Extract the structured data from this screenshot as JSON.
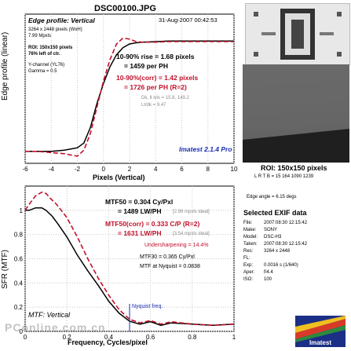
{
  "title": "DSC00100.JPG",
  "edge": {
    "header": "Edge profile: Vertical",
    "date": "31-Aug-2007 00:42:53",
    "ylabel": "Edge profile (linear)",
    "xlabel": "Pixels (Vertical)",
    "info": [
      "3264 x 2448 pixels (WxH)",
      "7.99 Mpxls",
      "ROI: 150x150 pixels",
      "76% left of ctr.",
      "Y-channel (YL76)",
      "Gamma = 0.5"
    ],
    "rise1": "10-90% rise = 1.68 pixels",
    "rise2": "= 1459 per PH",
    "corr1": "10-90%(corr) = 1.42 pixels",
    "corr2": "= 1726 per PH  (R=2)",
    "dk": "Dk, lt lvls = 15.8, 149.2",
    "ltdk": "Lt/dk = 9.47",
    "brand": "Imatest 2.1.4 Pro"
  },
  "mtf": {
    "ylabel": "SFR (MTF)",
    "xlabel": "Frequency, Cycles/pixel",
    "caption": "MTF: Vertical",
    "mtf50a": "MTF50 = 0.304 Cy/Pxl",
    "mtf50b": "= 1489 LW/PH",
    "mtf50b_note": "[2.96 mpxls ideal]",
    "mtf50c": "MTF50(corr) = 0.333 C/P  (R=2)",
    "mtf50d": "= 1631 LW/PH",
    "mtf50d_note": "[3.54 mpxls ideal]",
    "under": "Undersharpening = 14.4%",
    "mtf30": "MTF30 = 0.365 Cy/Pxl",
    "nyq": "MTF at Nyquist = 0.0838",
    "nyq_label": "Nyquist freq."
  },
  "roi": {
    "title": "ROI: 150x150 pixels",
    "coords": "L R T B = 15 164  1090 1239"
  },
  "edge_angle": "Edge angle = 6.15 degs",
  "exif": {
    "title": "Selected EXIF data",
    "rows": [
      [
        "File:",
        "2007:08:30 12:15:42"
      ],
      [
        "Make:",
        "SONY"
      ],
      [
        "Model:",
        "DSC-H3"
      ],
      [
        "Taken:",
        "2007:08:30 12:15:42"
      ],
      [
        "Res:",
        "3264 x 2448"
      ],
      [
        "FL:",
        ""
      ],
      [
        "Exp:",
        "0.0016 s  (1/640)"
      ],
      [
        "Aper:",
        "f/4.4"
      ],
      [
        "ISO:",
        "100"
      ]
    ]
  },
  "logo": "Imatest",
  "watermark": "PConline.com.cn",
  "chart_data": [
    {
      "type": "line",
      "title": "Edge profile: Vertical",
      "xlabel": "Pixels (Vertical)",
      "ylabel": "Edge profile (linear)",
      "xlim": [
        -6,
        10
      ],
      "xticks": [
        -6,
        -4,
        -2,
        0,
        2,
        4,
        6,
        8,
        10
      ],
      "series": [
        {
          "style": "solid-black",
          "x": [
            -6,
            -5,
            -4,
            -3,
            -2.5,
            -2,
            -1.5,
            -1,
            -0.5,
            0,
            0.5,
            1,
            1.5,
            2,
            2.5,
            3,
            4,
            5,
            6,
            7,
            8,
            9,
            10
          ],
          "y": [
            0.05,
            0.05,
            0.05,
            0.06,
            0.07,
            0.08,
            0.12,
            0.25,
            0.45,
            0.62,
            0.76,
            0.86,
            0.92,
            0.95,
            0.96,
            0.965,
            0.97,
            0.975,
            0.975,
            0.975,
            0.975,
            0.975,
            0.975
          ]
        },
        {
          "style": "dashed-red",
          "x": [
            -6,
            -5,
            -4,
            -3,
            -2.5,
            -2,
            -1.5,
            -1,
            -0.5,
            0,
            0.5,
            1,
            1.5,
            2,
            2.5,
            3,
            4,
            5,
            6,
            7,
            8,
            9,
            10
          ],
          "y": [
            0.05,
            0.05,
            0.04,
            0.03,
            0.02,
            0.01,
            0.06,
            0.2,
            0.42,
            0.64,
            0.82,
            0.95,
            1.0,
            0.99,
            0.97,
            0.965,
            0.965,
            0.97,
            0.97,
            0.97,
            0.97,
            0.97,
            0.97
          ]
        }
      ]
    },
    {
      "type": "line",
      "title": "MTF: Vertical",
      "xlabel": "Frequency, Cycles/pixel",
      "ylabel": "SFR (MTF)",
      "xlim": [
        0,
        1
      ],
      "ylim": [
        0,
        1.2
      ],
      "xticks": [
        0,
        0.2,
        0.4,
        0.6,
        0.8,
        1
      ],
      "yticks": [
        0,
        0.2,
        0.4,
        0.6,
        0.8,
        1
      ],
      "series": [
        {
          "style": "solid-black",
          "x": [
            0,
            0.02,
            0.05,
            0.08,
            0.1,
            0.13,
            0.16,
            0.2,
            0.25,
            0.3,
            0.35,
            0.4,
            0.45,
            0.5,
            0.55,
            0.6,
            0.65,
            0.7,
            0.8,
            0.9,
            1.0
          ],
          "y": [
            1.0,
            1.0,
            1.02,
            1.02,
            1.0,
            0.95,
            0.88,
            0.78,
            0.63,
            0.5,
            0.38,
            0.25,
            0.15,
            0.084,
            0.06,
            0.08,
            0.05,
            0.07,
            0.06,
            0.05,
            0.06
          ]
        },
        {
          "style": "dashed-red",
          "x": [
            0,
            0.02,
            0.05,
            0.08,
            0.1,
            0.12,
            0.15,
            0.2,
            0.25,
            0.3,
            0.35,
            0.4,
            0.45,
            0.5,
            0.55,
            0.6,
            0.65,
            0.7,
            0.8,
            0.9,
            1.0
          ],
          "y": [
            1.0,
            1.05,
            1.12,
            1.15,
            1.14,
            1.1,
            1.05,
            0.94,
            0.78,
            0.6,
            0.44,
            0.3,
            0.18,
            0.1,
            0.07,
            0.09,
            0.06,
            0.08,
            0.06,
            0.05,
            0.06
          ]
        }
      ]
    }
  ]
}
